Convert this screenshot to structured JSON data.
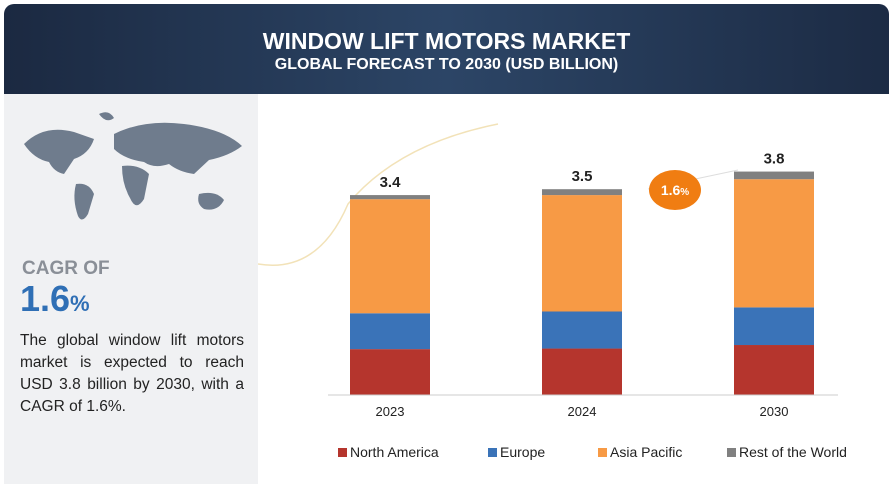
{
  "header": {
    "title": "WINDOW LIFT MOTORS MARKET",
    "subtitle": "GLOBAL FORECAST TO 2030 (USD BILLION)"
  },
  "cagr": {
    "label": "CAGR OF",
    "value": 1.6,
    "unit": "%"
  },
  "description": "The global window lift motors market is expected to reach USD 3.8 billion by 2030, with a CAGR of 1.6%.",
  "chart_data": {
    "type": "stacked-bar",
    "categories": [
      "2023",
      "2024",
      "2030"
    ],
    "series": [
      {
        "name": "North America",
        "color": "#b5352d",
        "values": [
          0.78,
          0.79,
          0.85
        ]
      },
      {
        "name": "Europe",
        "color": "#3a73b8",
        "values": [
          0.61,
          0.63,
          0.64
        ]
      },
      {
        "name": "Asia Pacific",
        "color": "#f79a45",
        "values": [
          1.94,
          1.98,
          2.18
        ]
      },
      {
        "name": "Rest of the World",
        "color": "#808080",
        "values": [
          0.07,
          0.1,
          0.13
        ]
      }
    ],
    "totals": [
      3.4,
      3.5,
      3.8
    ]
  }
}
